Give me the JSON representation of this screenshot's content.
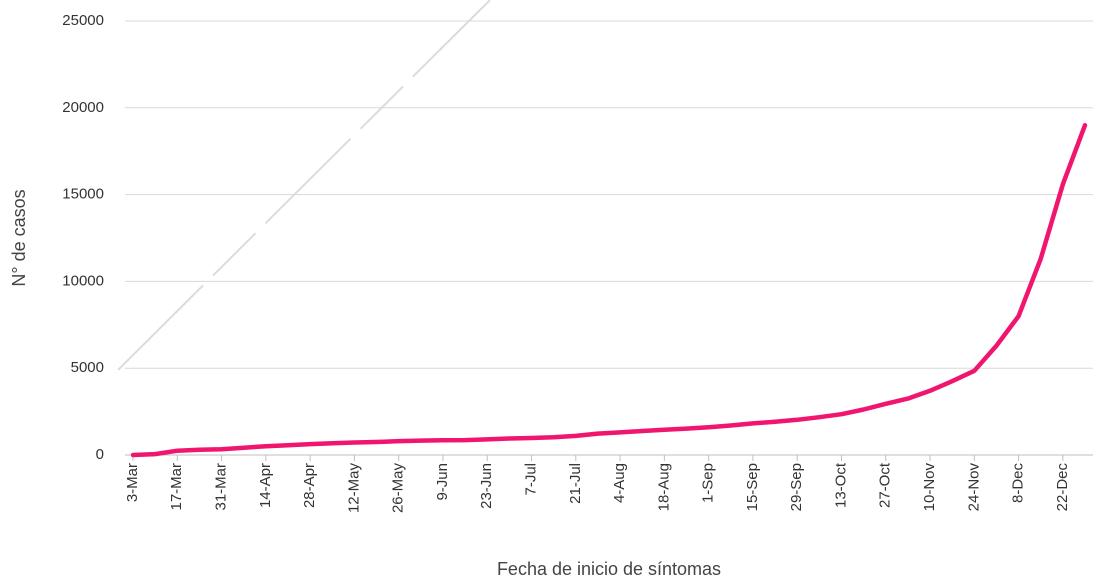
{
  "chart_data": {
    "type": "line",
    "x_label": "Fecha de inicio de síntomas",
    "y_label": "N° de casos",
    "categories": [
      "3-Mar",
      null,
      "17-Mar",
      null,
      "31-Mar",
      null,
      "14-Apr",
      null,
      "28-Apr",
      null,
      "12-May",
      null,
      "26-May",
      null,
      "9-Jun",
      null,
      "23-Jun",
      null,
      "7-Jul",
      null,
      "21-Jul",
      null,
      "4-Aug",
      null,
      "18-Aug",
      null,
      "1-Sep",
      null,
      "15-Sep",
      null,
      "29-Sep",
      null,
      "13-Oct",
      null,
      "27-Oct",
      null,
      "10-Nov",
      null,
      "24-Nov",
      null,
      "8-Dec",
      null,
      "22-Dec",
      null
    ],
    "values": [
      0,
      50,
      250,
      300,
      330,
      420,
      500,
      560,
      630,
      680,
      720,
      750,
      800,
      830,
      850,
      860,
      900,
      950,
      980,
      1020,
      1100,
      1230,
      1300,
      1380,
      1460,
      1520,
      1600,
      1700,
      1820,
      1920,
      2030,
      2180,
      2350,
      2620,
      2950,
      3250,
      3700,
      4250,
      4850,
      6300,
      8000,
      11300,
      15600,
      19000
    ],
    "color": "#f0166f",
    "ylim": [
      0,
      25000
    ],
    "yticks": [
      0,
      5000,
      10000,
      15000,
      20000,
      25000
    ],
    "grid": true
  }
}
